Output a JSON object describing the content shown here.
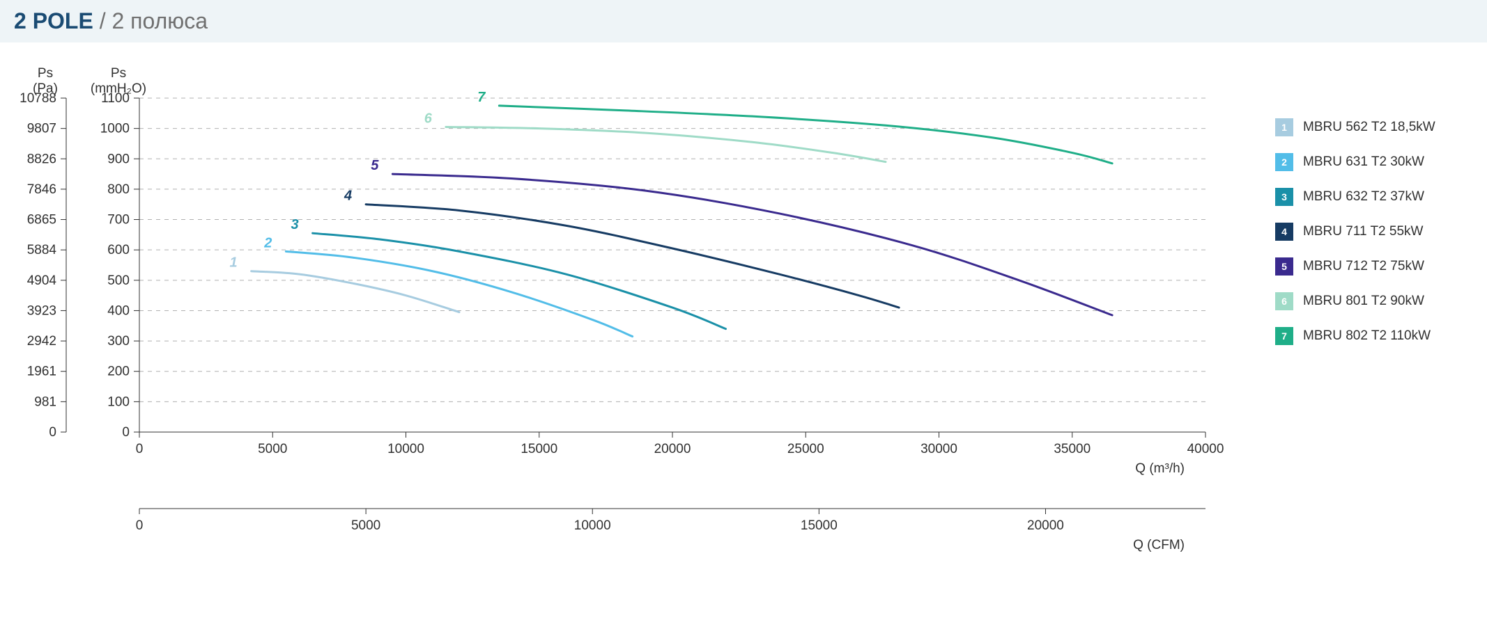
{
  "header": {
    "title_main": "2 POLE",
    "title_sub": " / 2 полюса"
  },
  "chart": {
    "type": "line",
    "background_color": "#ffffff",
    "grid_color": "#b0b0b0",
    "axis_color": "#303030",
    "tick_fontsize": 19,
    "label_fontsize": 19,
    "series_label_fontsize": 20,
    "y_axes": [
      {
        "label_top": "Ps",
        "label_bottom": "(Pa)",
        "ticks": [
          0,
          981,
          1961,
          2942,
          3923,
          4904,
          5884,
          6865,
          7846,
          8826,
          9807,
          10788
        ]
      },
      {
        "label_top": "Ps",
        "label_bottom": "(mmH₂O)",
        "ticks": [
          0,
          100,
          200,
          300,
          400,
          500,
          600,
          700,
          800,
          900,
          1000,
          1100
        ]
      }
    ],
    "x_axes": [
      {
        "label": "Q (m³/h)",
        "ticks": [
          0,
          5000,
          10000,
          15000,
          20000,
          25000,
          30000,
          35000,
          40000
        ],
        "min": 0,
        "max": 40000
      },
      {
        "label": "Q (CFM)",
        "ticks": [
          0,
          5000,
          10000,
          15000,
          20000
        ],
        "min": 0,
        "max": 23530
      }
    ],
    "y_domain_mmH2O": {
      "min": 0,
      "max": 1100
    },
    "series": [
      {
        "id": "1",
        "name": "MBRU 562 T2 18,5kW",
        "color": "#a7cce0",
        "line_width": 3,
        "label_color": "#a7cce0",
        "points_x_m3h": [
          4200,
          6000,
          8000,
          10000,
          12000
        ],
        "points_y_mmH2O": [
          530,
          520,
          490,
          450,
          395
        ]
      },
      {
        "id": "2",
        "name": "MBRU 631 T2 30kW",
        "color": "#52bde8",
        "line_width": 3,
        "label_color": "#52bde8",
        "points_x_m3h": [
          5500,
          8000,
          11000,
          14000,
          17000,
          18500
        ],
        "points_y_mmH2O": [
          595,
          575,
          530,
          460,
          370,
          315
        ]
      },
      {
        "id": "3",
        "name": "MBRU 632 T2 37kW",
        "color": "#1a90a8",
        "line_width": 3,
        "label_color": "#1a90a8",
        "points_x_m3h": [
          6500,
          9000,
          12000,
          16000,
          20000,
          22000
        ],
        "points_y_mmH2O": [
          655,
          635,
          595,
          520,
          410,
          340
        ]
      },
      {
        "id": "4",
        "name": "MBRU 711 T2 55kW",
        "color": "#163b63",
        "line_width": 3,
        "label_color": "#163b63",
        "points_x_m3h": [
          8500,
          12000,
          16000,
          20000,
          24000,
          27000,
          28500
        ],
        "points_y_mmH2O": [
          750,
          730,
          680,
          605,
          520,
          450,
          410
        ]
      },
      {
        "id": "5",
        "name": "MBRU 712 T2 75kW",
        "color": "#3a2a8e",
        "line_width": 3,
        "label_color": "#3a2a8e",
        "points_x_m3h": [
          9500,
          14000,
          19000,
          24000,
          29000,
          33000,
          36500
        ],
        "points_y_mmH2O": [
          850,
          835,
          795,
          720,
          615,
          500,
          385
        ]
      },
      {
        "id": "6",
        "name": "MBRU 801 T2 90kW",
        "color": "#9fdbc7",
        "line_width": 3,
        "label_color": "#9fdbc7",
        "points_x_m3h": [
          11500,
          15000,
          19000,
          23000,
          26000,
          28000
        ],
        "points_y_mmH2O": [
          1005,
          1000,
          985,
          955,
          920,
          890
        ]
      },
      {
        "id": "7",
        "name": "MBRU 802 T2 110kW",
        "color": "#1fae88",
        "line_width": 3,
        "label_color": "#1fae88",
        "points_x_m3h": [
          13500,
          18000,
          23000,
          28000,
          32000,
          35000,
          36500
        ],
        "points_y_mmH2O": [
          1075,
          1060,
          1040,
          1010,
          970,
          920,
          885
        ]
      }
    ]
  },
  "legend": {
    "box_text_color": "#ffffff",
    "label_color": "#303030",
    "label_fontsize": 19
  }
}
